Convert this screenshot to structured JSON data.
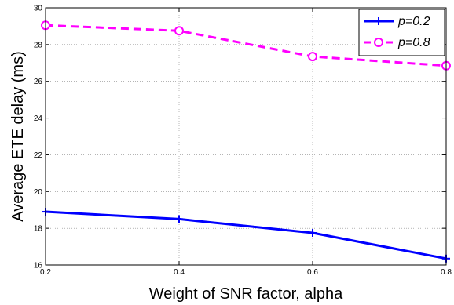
{
  "chart_data": {
    "type": "line",
    "title": "",
    "xlabel": "Weight of SNR factor, alpha",
    "ylabel": "Average ETE delay (ms)",
    "xlim": [
      0.2,
      0.8
    ],
    "ylim": [
      16,
      30
    ],
    "x_ticks": [
      "0.2",
      "0.4",
      "0.6",
      "0.8"
    ],
    "y_ticks": [
      "16",
      "18",
      "20",
      "22",
      "24",
      "26",
      "28",
      "30"
    ],
    "grid": true,
    "legend_position": "top-right",
    "x": [
      0.2,
      0.4,
      0.6,
      0.8
    ],
    "series": [
      {
        "name": "p=0.2",
        "values": [
          18.9,
          18.5,
          17.75,
          16.35
        ],
        "color": "#0000ff",
        "marker": "plus",
        "line": "solid"
      },
      {
        "name": "p=0.8",
        "values": [
          29.05,
          28.75,
          27.35,
          26.85
        ],
        "color": "#ff00ff",
        "marker": "circle",
        "line": "dashed"
      }
    ]
  }
}
